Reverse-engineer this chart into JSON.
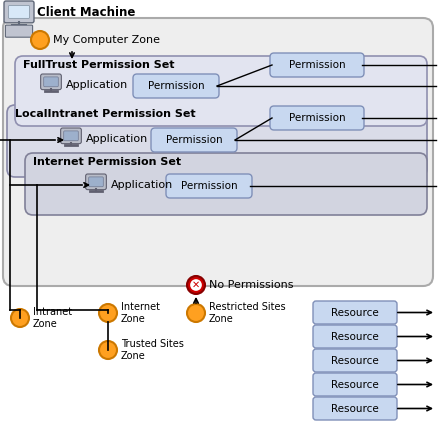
{
  "bg_outer": "#eeeeee",
  "bg_outer_edge": "#aaaaaa",
  "bg_fulltrust": "#e2e4f0",
  "bg_fulltrust_edge": "#9090b0",
  "bg_localintranet": "#dadce8",
  "bg_localintranet_edge": "#8888a8",
  "bg_internet": "#d2d4e0",
  "bg_internet_edge": "#808098",
  "permission_box_color": "#c8d8f0",
  "permission_box_edge": "#8090b8",
  "resource_box_color": "#c8d8f0",
  "resource_box_edge": "#8090b8",
  "zone_color": "#FFA020",
  "zone_edge": "#cc7800",
  "no_perm_fill": "#dd0000",
  "no_perm_edge": "#880000",
  "line_color": "#000000",
  "text_color": "#000000",
  "fulltrust_label": "FullTrust Permission Set",
  "localintranet_label": "LocalIntranet Permission Set",
  "internet_label": "Internet Permission Set",
  "my_computer_label": "My Computer Zone",
  "client_machine_label": "Client Machine",
  "no_perm_label": "No Permissions",
  "intranet_label": "Intranet\nZone",
  "internet_zone_label": "Internet\nZone",
  "restricted_label": "Restricted Sites\nZone",
  "trusted_label": "Trusted Sites\nZone",
  "resources": [
    "Resource",
    "Resource",
    "Resource",
    "Resource",
    "Resource"
  ],
  "app_label": "Application",
  "perm_label": "Permission"
}
